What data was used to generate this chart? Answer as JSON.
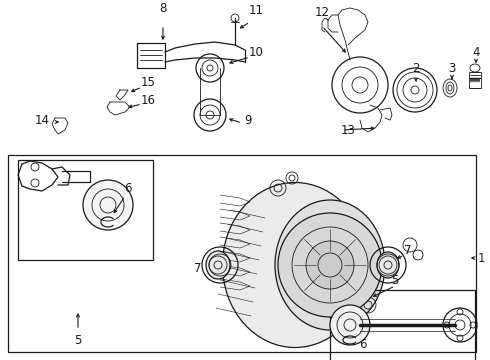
{
  "bg_color": "#ffffff",
  "line_color": "#1a1a1a",
  "fig_width": 4.9,
  "fig_height": 3.6,
  "dpi": 100
}
